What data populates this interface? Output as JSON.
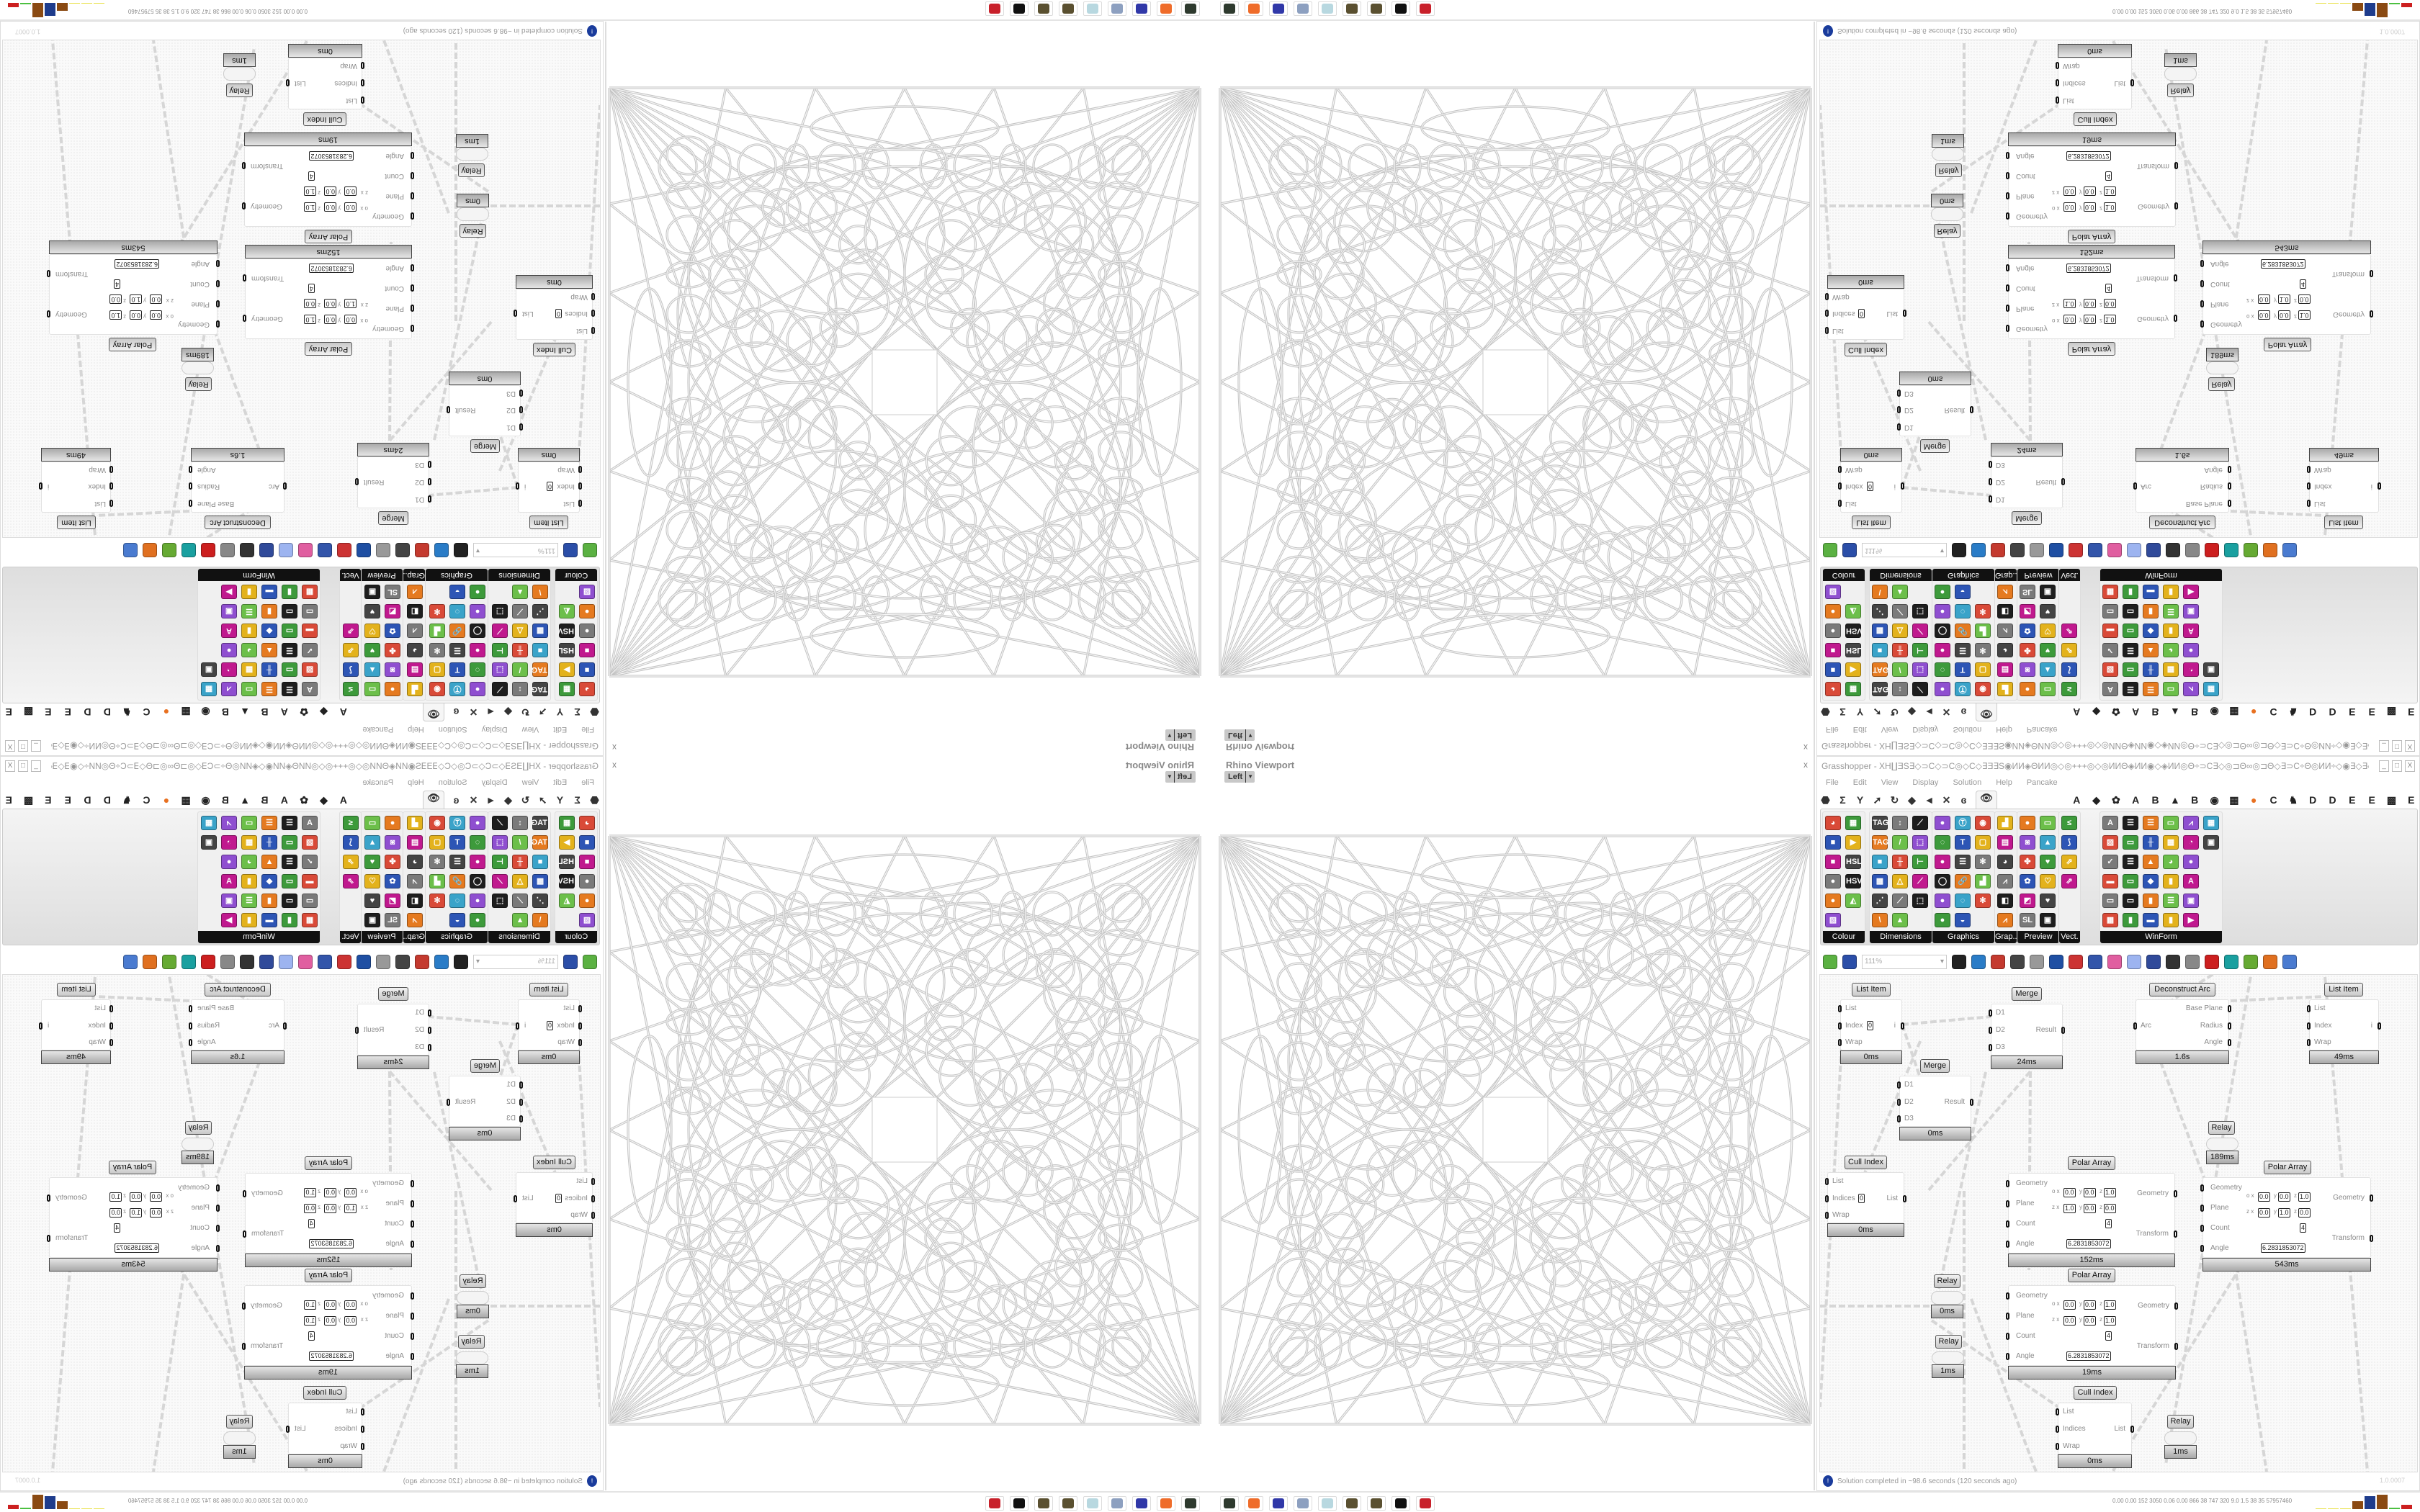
{
  "gh": {
    "window_title": "Grasshopper - XH∐ƎS∃◇⊃C◇⊃C◎◇C◇∃Ǝ∃S◉ИИ◈ΘИИ◎◇◎+++◎◇◎ИИΘ◈ИИ◉◇◈ИИ◎Θ÷⊃C∃◇◎⊐Θ∞◎⊐Θ◇∃⊃C÷Θ◎ИИ÷◇◉∃◇∃◇∃⊞÷∃S÷⊞∃◇∃◉◇◈◇◎∃⊞◈÷⊃C...",
    "window_buttons": {
      "minimize": "_",
      "maximize": "□",
      "close": "X"
    },
    "menu": [
      "File",
      "Edit",
      "View",
      "Display",
      "Solution",
      "Help",
      "Pancake"
    ],
    "tab_glyphs": [
      "⬣",
      "Σ",
      "Y",
      "➚",
      "↻",
      "◆",
      "◄",
      "✕",
      "ɞ"
    ],
    "selected_tab_glyph": "👁",
    "tab_letters": [
      "A",
      "◆",
      "✿",
      "A",
      "B",
      "▲",
      "B",
      "◉",
      "▦",
      "●",
      "C",
      "♞",
      "D",
      "D",
      "E",
      "E",
      "▩",
      "E"
    ],
    "panels": [
      {
        "title": "Colour",
        "cols": 2,
        "glyphs": [
          "◕",
          "▦",
          "■",
          "▶",
          "■",
          "HSL",
          "●",
          "HSV",
          "●",
          "◭",
          "▨"
        ]
      },
      {
        "title": "Dimensions",
        "cols": 3,
        "glyphs": [
          "TAG",
          "↕",
          "⟋",
          "TAG",
          "/",
          "⬚",
          "■",
          "╫",
          "⊢",
          "▦",
          "△",
          "⟋",
          "⋰",
          "⟋",
          "⬚",
          "\\",
          "▲"
        ]
      },
      {
        "title": "Graphics",
        "cols": 3,
        "glyphs": [
          "●",
          "Ⓣ",
          "◉",
          "◌",
          "T",
          "▢",
          "●",
          "☰",
          "✻",
          "◯",
          "🔗",
          "▟",
          "●",
          "◌",
          "✻",
          "●",
          "◒"
        ]
      },
      {
        "title": "Grap...",
        "cols": 1,
        "glyphs": [
          "▟",
          "▤",
          "◕",
          "⩘",
          "◧",
          "⩘"
        ]
      },
      {
        "title": "Preview",
        "cols": 2,
        "glyphs": [
          "●",
          "▭",
          "◙",
          "▲",
          "✤",
          "♥",
          "✿",
          "♡",
          "◩",
          "♥",
          "SL",
          "▣"
        ]
      },
      {
        "title": "Vect.",
        "cols": 1,
        "glyphs": [
          "≤",
          "⟆",
          "⇗",
          "⇗"
        ]
      },
      {
        "title": "WinForm",
        "cols": 6,
        "glyphs": [
          "A",
          "☰",
          "☰",
          "▭",
          "⩘",
          "▦",
          "▨",
          "▭",
          "╫",
          "▦",
          "◔",
          "▣",
          "✓",
          "☰",
          "▲",
          "◕",
          "●",
          "",
          "▬",
          "▭",
          "◆",
          "▮",
          "A",
          "",
          "▭",
          "▭",
          "▮",
          "☰",
          "▣",
          "",
          "▦",
          "▮",
          "▬",
          "▮",
          "▶"
        ]
      }
    ],
    "icon_colors": [
      "#d94a38",
      "#3d9a3b",
      "#2d55b5",
      "#e3b21c",
      "#c0198e",
      "#444444",
      "#7a7a7a",
      "#1e1e1e",
      "#e57a20",
      "#6cbf4a",
      "#8f4fd0",
      "#3aa3c9"
    ],
    "zoom_value": "111%",
    "toolbar_icons": [
      "new-file-icon",
      "save-icon",
      "zoom-extents-icon",
      "preview-icon",
      "sketch-icon",
      "bake-icon",
      "at-icon",
      "gha-icon",
      "document-icon",
      "search-icon",
      "package-icon",
      "lightbulb-icon",
      "cross-wires-icon",
      "bell-icon",
      "tag-icon",
      "red-gem-icon",
      "twist-icon",
      "ribbon-icon",
      "ball-icon",
      "sphere-icon"
    ],
    "toolbar_colors": [
      "#5bb142",
      "#2b4ea8",
      "#222222",
      "#2a7cc7",
      "#c43a2f",
      "#444444",
      "#999999",
      "#1f4fa3",
      "#cc3333",
      "#3355aa",
      "#e05ea0",
      "#9db4f0",
      "#304a9a",
      "#333333",
      "#888888",
      "#cc1f1f",
      "#1aa0a0",
      "#66aa33",
      "#e07020",
      "#4a7bd0"
    ],
    "status_icon": "!",
    "status": "Solution completed in ~98.6 seconds (120 seconds ago)",
    "version": "1.0.0007",
    "plane_axis_labels": {
      "origin": "o",
      "zaxis": "z",
      "x": "x",
      "y": "y",
      "z": "z"
    },
    "components": [
      {
        "title": "List Item",
        "inputs": [
          "List",
          "Index",
          "Wrap"
        ],
        "outputs": [
          "i"
        ],
        "footer": "0ms",
        "index_value": "0"
      },
      {
        "title": "Merge",
        "inputs": [
          "D1",
          "D2",
          "D3"
        ],
        "outputs": [
          "Result"
        ],
        "footer": "24ms"
      },
      {
        "title": "Deconstruct Arc",
        "inputs": [
          "Arc"
        ],
        "outputs": [
          "Base Plane",
          "Radius",
          "Angle"
        ],
        "footer": "1.6s"
      },
      {
        "title": "List Item",
        "inputs": [
          "List",
          "Index",
          "Wrap"
        ],
        "outputs": [
          "i"
        ],
        "footer": "49ms"
      },
      {
        "title": "Merge",
        "inputs": [
          "D1",
          "D2",
          "D3"
        ],
        "outputs": [
          "Result"
        ],
        "footer": "0ms"
      },
      {
        "title": "Relay",
        "footer": "189ms"
      },
      {
        "title": "Cull Index",
        "inputs": [
          "List",
          "Indices",
          "Wrap"
        ],
        "outputs": [
          "List"
        ],
        "footer": "0ms",
        "index_value": "0"
      },
      {
        "title": "Polar Array",
        "inputs": [
          "Geometry",
          "Plane",
          "Count",
          "Angle"
        ],
        "outputs": [
          "Geometry",
          "Transform"
        ],
        "footer": "152ms",
        "plane_o": [
          "0.0",
          "0.0",
          "1.0"
        ],
        "plane_z": [
          "1.0",
          "0.0",
          "0.0"
        ],
        "count": "4",
        "angle": "6.2831853072"
      },
      {
        "title": "Polar Array",
        "inputs": [
          "Geometry",
          "Plane",
          "Count",
          "Angle"
        ],
        "outputs": [
          "Geometry",
          "Transform"
        ],
        "footer": "543ms",
        "plane_o": [
          "0.0",
          "0.0",
          "1.0"
        ],
        "plane_z": [
          "0.0",
          "1.0",
          "0.0"
        ],
        "count": "4",
        "angle": "6.2831853072"
      },
      {
        "title": "Relay",
        "footer": "0ms"
      },
      {
        "title": "Relay",
        "footer": "1ms"
      },
      {
        "title": "Polar Array",
        "inputs": [
          "Geometry",
          "Plane",
          "Count",
          "Angle"
        ],
        "outputs": [
          "Geometry",
          "Transform"
        ],
        "footer": "19ms",
        "plane_o": [
          "0.0",
          "0.0",
          "1.0"
        ],
        "plane_z": [
          "0.0",
          "0.0",
          "1.0"
        ],
        "count": "4",
        "angle": "6.2831853072"
      },
      {
        "title": "Cull Index",
        "inputs": [
          "List",
          "Indices",
          "Wrap"
        ],
        "outputs": [
          "List"
        ],
        "footer": "0ms"
      },
      {
        "title": "Relay",
        "footer": "1ms"
      }
    ]
  },
  "viewport": {
    "title": "Rhino Viewport",
    "view": "Left",
    "close": "x"
  },
  "taskbar": {
    "apps": [
      {
        "name": "launcher-icon",
        "color": "#2e3a2e"
      },
      {
        "name": "firefox-icon",
        "color": "#ef6c2a"
      },
      {
        "name": "save64-icon",
        "color": "#3038a8"
      },
      {
        "name": "files-icon",
        "color": "#8da0c0"
      },
      {
        "name": "notepad-icon",
        "color": "#b8d8e0"
      },
      {
        "name": "seed-icon",
        "color": "#5a5030"
      },
      {
        "name": "seed-icon",
        "color": "#5a5030"
      },
      {
        "name": "rhino-icon",
        "color": "#111111"
      },
      {
        "name": "grasshopper-icon",
        "color": "#c8202a"
      }
    ],
    "stats": "0.00 0.00 152 3050 0.06 0.00 866 38 747 320 9.0 1.5 38 35 57957460",
    "bars": [
      {
        "color": "#e8e040",
        "level": 0.05
      },
      {
        "color": "#e8e040",
        "level": 0.05
      },
      {
        "color": "#e8e040",
        "level": 0.05
      },
      {
        "color": "#8a4a12",
        "level": 0.55
      },
      {
        "color": "#1e3c8c",
        "level": 0.9
      },
      {
        "color": "#8a4a12",
        "level": 1.0
      },
      {
        "color": "#4cc040",
        "level": 0.08
      },
      {
        "color": "#cc2020",
        "level": 0.3
      }
    ]
  }
}
